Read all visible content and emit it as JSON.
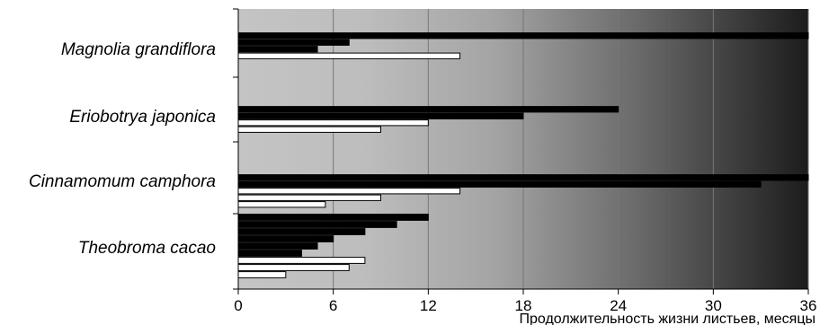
{
  "chart_data": {
    "type": "bar",
    "orientation": "horizontal",
    "xlabel": "Продолжительность жизни листьев, месяцы",
    "xlim": [
      0,
      36
    ],
    "xticks": [
      0,
      6,
      12,
      18,
      24,
      30,
      36
    ],
    "grid": true,
    "background": "gradient light-grey to black",
    "bar_colors": {
      "dark": "#000000",
      "light": "#ffffff"
    },
    "categories": [
      {
        "name": "Magnolia grandiflora",
        "bars": [
          {
            "value": 36,
            "fill": "dark"
          },
          {
            "value": 7,
            "fill": "dark"
          },
          {
            "value": 5,
            "fill": "dark"
          },
          {
            "value": 14,
            "fill": "light"
          }
        ]
      },
      {
        "name": "Eriobotrya japonica",
        "bars": [
          {
            "value": 24,
            "fill": "dark"
          },
          {
            "value": 18,
            "fill": "dark"
          },
          {
            "value": 12,
            "fill": "light"
          },
          {
            "value": 9,
            "fill": "light"
          }
        ]
      },
      {
        "name": "Cinnamomum camphora",
        "bars": [
          {
            "value": 36,
            "fill": "dark"
          },
          {
            "value": 33,
            "fill": "dark"
          },
          {
            "value": 14,
            "fill": "light"
          },
          {
            "value": 9,
            "fill": "light"
          },
          {
            "value": 5.5,
            "fill": "light"
          }
        ]
      },
      {
        "name": "Theobroma cacao",
        "bars": [
          {
            "value": 12,
            "fill": "dark"
          },
          {
            "value": 10,
            "fill": "dark"
          },
          {
            "value": 8,
            "fill": "dark"
          },
          {
            "value": 6,
            "fill": "dark"
          },
          {
            "value": 5,
            "fill": "dark"
          },
          {
            "value": 4,
            "fill": "dark"
          },
          {
            "value": 8,
            "fill": "light"
          },
          {
            "value": 7,
            "fill": "light"
          },
          {
            "value": 3,
            "fill": "light"
          }
        ]
      }
    ]
  }
}
